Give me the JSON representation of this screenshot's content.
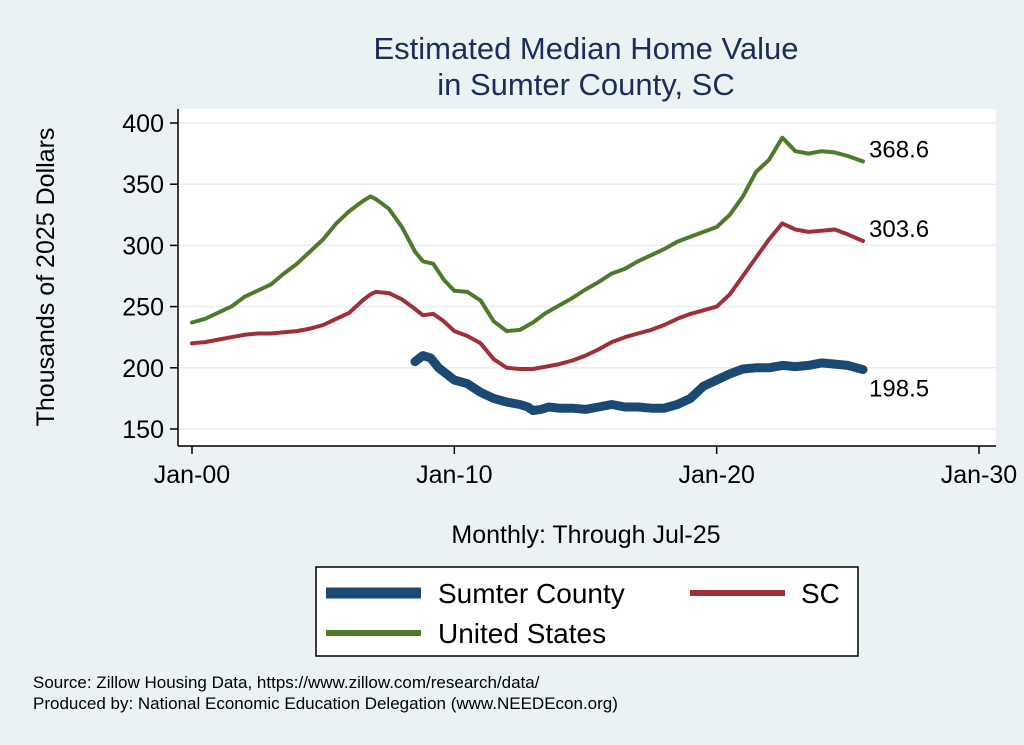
{
  "chart_data": {
    "type": "line",
    "title": [
      "Estimated Median Home Value",
      "in Sumter County, SC"
    ],
    "xlabel": "Monthly: Through Jul-25",
    "ylabel": "Thousands of 2025 Dollars",
    "xlim": [
      2000,
      2030
    ],
    "ylim": [
      140,
      410
    ],
    "x_ticks": [
      {
        "value": 2000,
        "label": "Jan-00"
      },
      {
        "value": 2010,
        "label": "Jan-10"
      },
      {
        "value": 2020,
        "label": "Jan-20"
      },
      {
        "value": 2030,
        "label": "Jan-30"
      }
    ],
    "y_ticks": [
      150,
      200,
      250,
      300,
      350,
      400
    ],
    "grid": true,
    "legend_position": "bottom",
    "series": [
      {
        "name": "Sumter County",
        "color": "#1a4a73",
        "line_width": 9,
        "end_label": "198.5",
        "points": [
          [
            2008.5,
            205
          ],
          [
            2008.8,
            210
          ],
          [
            2009.1,
            208
          ],
          [
            2009.4,
            200
          ],
          [
            2009.7,
            195
          ],
          [
            2010.0,
            190
          ],
          [
            2010.5,
            187
          ],
          [
            2011.0,
            180
          ],
          [
            2011.5,
            175
          ],
          [
            2012.0,
            172
          ],
          [
            2012.5,
            170
          ],
          [
            2012.8,
            168
          ],
          [
            2013.0,
            165
          ],
          [
            2013.3,
            166
          ],
          [
            2013.6,
            168
          ],
          [
            2014.0,
            167
          ],
          [
            2014.5,
            167
          ],
          [
            2015.0,
            166
          ],
          [
            2015.5,
            168
          ],
          [
            2016.0,
            170
          ],
          [
            2016.5,
            168
          ],
          [
            2017.0,
            168
          ],
          [
            2017.5,
            167
          ],
          [
            2018.0,
            167
          ],
          [
            2018.5,
            170
          ],
          [
            2019.0,
            175
          ],
          [
            2019.5,
            185
          ],
          [
            2020.0,
            190
          ],
          [
            2020.5,
            195
          ],
          [
            2021.0,
            199
          ],
          [
            2021.5,
            200
          ],
          [
            2022.0,
            200
          ],
          [
            2022.5,
            202
          ],
          [
            2023.0,
            201
          ],
          [
            2023.5,
            202
          ],
          [
            2024.0,
            204
          ],
          [
            2024.5,
            203
          ],
          [
            2025.0,
            202
          ],
          [
            2025.58,
            198.5
          ]
        ]
      },
      {
        "name": "SC",
        "color": "#a03038",
        "line_width": 4,
        "end_label": "303.6",
        "points": [
          [
            2000.0,
            220
          ],
          [
            2000.5,
            221
          ],
          [
            2001.0,
            223
          ],
          [
            2001.5,
            225
          ],
          [
            2002.0,
            227
          ],
          [
            2002.5,
            228
          ],
          [
            2003.0,
            228
          ],
          [
            2003.5,
            229
          ],
          [
            2004.0,
            230
          ],
          [
            2004.5,
            232
          ],
          [
            2005.0,
            235
          ],
          [
            2005.5,
            240
          ],
          [
            2006.0,
            245
          ],
          [
            2006.5,
            255
          ],
          [
            2006.8,
            260
          ],
          [
            2007.0,
            262
          ],
          [
            2007.5,
            261
          ],
          [
            2008.0,
            256
          ],
          [
            2008.5,
            248
          ],
          [
            2008.8,
            243
          ],
          [
            2009.2,
            244
          ],
          [
            2009.6,
            238
          ],
          [
            2010.0,
            230
          ],
          [
            2010.5,
            226
          ],
          [
            2011.0,
            220
          ],
          [
            2011.5,
            207
          ],
          [
            2012.0,
            200
          ],
          [
            2012.5,
            199
          ],
          [
            2013.0,
            199
          ],
          [
            2013.5,
            201
          ],
          [
            2014.0,
            203
          ],
          [
            2014.5,
            206
          ],
          [
            2015.0,
            210
          ],
          [
            2015.5,
            215
          ],
          [
            2016.0,
            221
          ],
          [
            2016.5,
            225
          ],
          [
            2017.0,
            228
          ],
          [
            2017.5,
            231
          ],
          [
            2018.0,
            235
          ],
          [
            2018.5,
            240
          ],
          [
            2019.0,
            244
          ],
          [
            2019.5,
            247
          ],
          [
            2020.0,
            250
          ],
          [
            2020.5,
            260
          ],
          [
            2021.0,
            275
          ],
          [
            2021.5,
            290
          ],
          [
            2022.0,
            305
          ],
          [
            2022.5,
            318
          ],
          [
            2023.0,
            313
          ],
          [
            2023.5,
            311
          ],
          [
            2024.0,
            312
          ],
          [
            2024.5,
            313
          ],
          [
            2025.0,
            309
          ],
          [
            2025.58,
            303.6
          ]
        ]
      },
      {
        "name": "United States",
        "color": "#4f7a2b",
        "line_width": 4,
        "end_label": "368.6",
        "points": [
          [
            2000.0,
            237
          ],
          [
            2000.5,
            240
          ],
          [
            2001.0,
            245
          ],
          [
            2001.5,
            250
          ],
          [
            2002.0,
            258
          ],
          [
            2002.5,
            263
          ],
          [
            2003.0,
            268
          ],
          [
            2003.5,
            277
          ],
          [
            2004.0,
            285
          ],
          [
            2004.5,
            295
          ],
          [
            2005.0,
            305
          ],
          [
            2005.5,
            318
          ],
          [
            2006.0,
            328
          ],
          [
            2006.5,
            336
          ],
          [
            2006.8,
            340
          ],
          [
            2007.0,
            338
          ],
          [
            2007.5,
            330
          ],
          [
            2008.0,
            315
          ],
          [
            2008.5,
            295
          ],
          [
            2008.8,
            287
          ],
          [
            2009.2,
            285
          ],
          [
            2009.6,
            272
          ],
          [
            2010.0,
            263
          ],
          [
            2010.5,
            262
          ],
          [
            2011.0,
            255
          ],
          [
            2011.5,
            238
          ],
          [
            2012.0,
            230
          ],
          [
            2012.5,
            231
          ],
          [
            2013.0,
            237
          ],
          [
            2013.5,
            245
          ],
          [
            2014.0,
            251
          ],
          [
            2014.5,
            257
          ],
          [
            2015.0,
            264
          ],
          [
            2015.5,
            270
          ],
          [
            2016.0,
            277
          ],
          [
            2016.5,
            281
          ],
          [
            2017.0,
            287
          ],
          [
            2017.5,
            292
          ],
          [
            2018.0,
            297
          ],
          [
            2018.5,
            303
          ],
          [
            2019.0,
            307
          ],
          [
            2019.5,
            311
          ],
          [
            2020.0,
            315
          ],
          [
            2020.5,
            325
          ],
          [
            2021.0,
            340
          ],
          [
            2021.5,
            360
          ],
          [
            2022.0,
            370
          ],
          [
            2022.5,
            388
          ],
          [
            2023.0,
            377
          ],
          [
            2023.5,
            375
          ],
          [
            2024.0,
            377
          ],
          [
            2024.5,
            376
          ],
          [
            2025.0,
            373
          ],
          [
            2025.58,
            368.6
          ]
        ]
      }
    ],
    "legend": [
      {
        "series": "Sumter County",
        "label": "Sumter County"
      },
      {
        "series": "SC",
        "label": "SC"
      },
      {
        "series": "United States",
        "label": "United States"
      }
    ]
  },
  "notes": {
    "source": "Source: Zillow Housing Data, https://www.zillow.com/research/data/",
    "produced_by": "Produced by: National Economic Education Delegation (www.NEEDEcon.org)"
  }
}
